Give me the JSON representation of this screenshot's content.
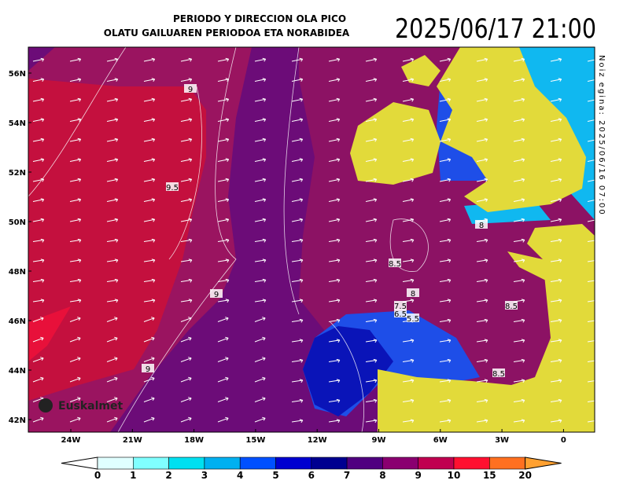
{
  "header": {
    "title_line1": "PERIODO Y DIRECCION OLA PICO",
    "title_line2": "OLATU GAILUAREN PERIODOA ETA NORABIDEA",
    "datetime": "2025/06/17 21:00",
    "made": "Noiz egina: 2025/06/16 07:00"
  },
  "map": {
    "lat_labels": [
      "56N",
      "54N",
      "52N",
      "50N",
      "48N",
      "46N",
      "44N",
      "42N"
    ],
    "lon_labels": [
      "24W",
      "21W",
      "18W",
      "15W",
      "12W",
      "9W",
      "6W",
      "3W",
      "0"
    ],
    "contour_labels": [
      "9",
      "9.5",
      "9",
      "9",
      "8",
      "8.5",
      "8",
      "7.5",
      "6.5",
      "5.5",
      "8.5",
      "8.5"
    ],
    "logo": "Euskalmet"
  },
  "colorbar": {
    "labels": [
      "0",
      "1",
      "2",
      "3",
      "4",
      "5",
      "6",
      "7",
      "8",
      "9",
      "10",
      "15",
      "20"
    ],
    "colors": [
      "#e0ffff",
      "#80ffff",
      "#00e0f0",
      "#00b0f0",
      "#0050ff",
      "#0000d0",
      "#000090",
      "#500080",
      "#8a0070",
      "#c00050",
      "#ff1030",
      "#ff7020"
    ]
  }
}
